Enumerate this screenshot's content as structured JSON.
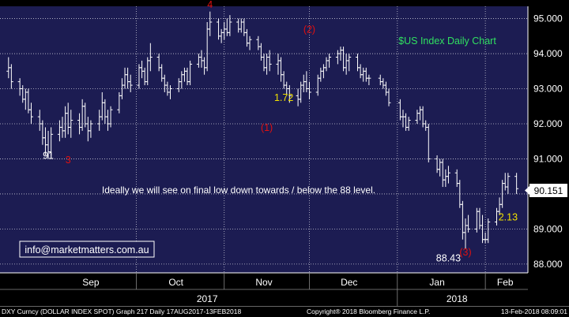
{
  "chart_data": {
    "type": "ohlc",
    "title": "$US Index Daily Chart",
    "instrument": "DXY Curncy (DOLLAR INDEX SPOT)",
    "graph_info": "Graph 217  Daily 17AUG2017-13FEB2018",
    "copyright": "Copyright® 2018 Bloomberg Finance L.P.",
    "timestamp": "13-Feb-2018 08:09:01",
    "ylim": [
      87.75,
      95.35
    ],
    "y_ticks": [
      88.0,
      89.0,
      90.0,
      91.0,
      92.0,
      93.0,
      94.0,
      95.0
    ],
    "y_tick_labels": [
      "88.000",
      "89.000",
      "90.000",
      "91.000",
      "92.000",
      "93.000",
      "94.000",
      "95.000"
    ],
    "x_labels": [
      "Sep",
      "Oct",
      "Nov",
      "Dec",
      "Jan",
      "Feb"
    ],
    "years": [
      "2017",
      "2018"
    ],
    "last_price": "90.151",
    "grid": true,
    "colors": {
      "background": "#000000",
      "plot_bg": "#1c1c52",
      "grid": "#ffffff",
      "bars": "#ffffff",
      "red": "#e01010",
      "yellow": "#f0e000",
      "green": "#30e060",
      "white": "#ffffff"
    },
    "annotations": [
      {
        "text": "91",
        "x": "2017-08-31",
        "y": 91.0,
        "color": "white"
      },
      {
        "text": "3",
        "x": "2017-09-07",
        "y": 90.88,
        "color": "red"
      },
      {
        "text": "4",
        "x": "2017-10-27",
        "y": 95.3,
        "color": "red"
      },
      {
        "text": "(1)",
        "x": "2017-11-16",
        "y": 91.8,
        "color": "red"
      },
      {
        "text": "1.72",
        "x": "2017-11-22",
        "y": 92.65,
        "color": "yellow"
      },
      {
        "text": "(2)",
        "x": "2017-12-01",
        "y": 94.6,
        "color": "red"
      },
      {
        "text": "88.43",
        "x": "2018-01-19",
        "y": 88.08,
        "color": "white"
      },
      {
        "text": "(3)",
        "x": "2018-01-25",
        "y": 88.25,
        "color": "red"
      },
      {
        "text": "2.13",
        "x": "2018-02-09",
        "y": 89.25,
        "color": "yellow"
      }
    ],
    "commentary": "Ideally we will see on final low down towards / below the 88 level.",
    "contact": "info@marketmatters.com.au",
    "bars": [
      {
        "date": "2017-08-17",
        "o": 93.5,
        "h": 93.9,
        "l": 93.3,
        "c": 93.6
      },
      {
        "date": "2017-08-18",
        "o": 93.6,
        "h": 93.7,
        "l": 93.0,
        "c": 93.2
      },
      {
        "date": "2017-08-21",
        "o": 93.2,
        "h": 93.3,
        "l": 92.8,
        "c": 93.0
      },
      {
        "date": "2017-08-22",
        "o": 93.0,
        "h": 93.1,
        "l": 92.6,
        "c": 92.7
      },
      {
        "date": "2017-08-23",
        "o": 92.7,
        "h": 93.0,
        "l": 92.4,
        "c": 92.9
      },
      {
        "date": "2017-08-24",
        "o": 92.9,
        "h": 93.0,
        "l": 92.3,
        "c": 92.4
      },
      {
        "date": "2017-08-25",
        "o": 92.4,
        "h": 92.6,
        "l": 92.0,
        "c": 92.2
      },
      {
        "date": "2017-08-28",
        "o": 92.2,
        "h": 92.4,
        "l": 91.8,
        "c": 92.0
      },
      {
        "date": "2017-08-29",
        "o": 92.0,
        "h": 92.1,
        "l": 91.4,
        "c": 91.6
      },
      {
        "date": "2017-08-30",
        "o": 91.6,
        "h": 91.9,
        "l": 91.1,
        "c": 91.4
      },
      {
        "date": "2017-08-31",
        "o": 91.4,
        "h": 91.8,
        "l": 91.0,
        "c": 91.2
      },
      {
        "date": "2017-09-01",
        "o": 91.2,
        "h": 91.9,
        "l": 91.1,
        "c": 91.7
      },
      {
        "date": "2017-09-04",
        "o": 91.7,
        "h": 92.1,
        "l": 91.5,
        "c": 91.9
      },
      {
        "date": "2017-09-05",
        "o": 91.9,
        "h": 92.2,
        "l": 91.6,
        "c": 91.8
      },
      {
        "date": "2017-09-06",
        "o": 91.8,
        "h": 92.5,
        "l": 91.6,
        "c": 92.3
      },
      {
        "date": "2017-09-07",
        "o": 92.3,
        "h": 92.6,
        "l": 91.7,
        "c": 91.9
      },
      {
        "date": "2017-09-08",
        "o": 91.9,
        "h": 92.4,
        "l": 91.6,
        "c": 92.1
      },
      {
        "date": "2017-09-11",
        "o": 92.1,
        "h": 92.3,
        "l": 91.7,
        "c": 91.9
      },
      {
        "date": "2017-09-12",
        "o": 91.9,
        "h": 92.7,
        "l": 91.8,
        "c": 92.5
      },
      {
        "date": "2017-09-13",
        "o": 92.5,
        "h": 92.6,
        "l": 91.9,
        "c": 92.0
      },
      {
        "date": "2017-09-14",
        "o": 92.0,
        "h": 92.2,
        "l": 91.5,
        "c": 91.8
      },
      {
        "date": "2017-09-15",
        "o": 91.8,
        "h": 92.1,
        "l": 91.6,
        "c": 92.0
      },
      {
        "date": "2017-09-18",
        "o": 92.0,
        "h": 92.4,
        "l": 91.8,
        "c": 92.2
      },
      {
        "date": "2017-09-19",
        "o": 92.2,
        "h": 92.9,
        "l": 92.1,
        "c": 92.6
      },
      {
        "date": "2017-09-20",
        "o": 92.6,
        "h": 92.7,
        "l": 92.0,
        "c": 92.2
      },
      {
        "date": "2017-09-21",
        "o": 92.2,
        "h": 92.4,
        "l": 91.8,
        "c": 92.0
      },
      {
        "date": "2017-09-22",
        "o": 92.0,
        "h": 92.5,
        "l": 91.9,
        "c": 92.4
      },
      {
        "date": "2017-09-25",
        "o": 92.4,
        "h": 92.9,
        "l": 92.3,
        "c": 92.8
      },
      {
        "date": "2017-09-26",
        "o": 92.8,
        "h": 93.3,
        "l": 92.7,
        "c": 93.1
      },
      {
        "date": "2017-09-27",
        "o": 93.1,
        "h": 93.6,
        "l": 93.0,
        "c": 93.4
      },
      {
        "date": "2017-09-28",
        "o": 93.4,
        "h": 93.6,
        "l": 93.0,
        "c": 93.2
      },
      {
        "date": "2017-09-29",
        "o": 93.2,
        "h": 93.4,
        "l": 92.9,
        "c": 93.1
      },
      {
        "date": "2017-10-02",
        "o": 93.1,
        "h": 93.7,
        "l": 93.0,
        "c": 93.6
      },
      {
        "date": "2017-10-03",
        "o": 93.6,
        "h": 93.8,
        "l": 93.3,
        "c": 93.5
      },
      {
        "date": "2017-10-04",
        "o": 93.5,
        "h": 93.6,
        "l": 93.1,
        "c": 93.2
      },
      {
        "date": "2017-10-05",
        "o": 93.2,
        "h": 93.9,
        "l": 93.1,
        "c": 93.8
      },
      {
        "date": "2017-10-06",
        "o": 93.8,
        "h": 94.3,
        "l": 93.5,
        "c": 93.9
      },
      {
        "date": "2017-10-09",
        "o": 93.9,
        "h": 94.0,
        "l": 93.5,
        "c": 93.6
      },
      {
        "date": "2017-10-10",
        "o": 93.6,
        "h": 93.7,
        "l": 93.2,
        "c": 93.3
      },
      {
        "date": "2017-10-11",
        "o": 93.3,
        "h": 93.4,
        "l": 92.9,
        "c": 93.1
      },
      {
        "date": "2017-10-12",
        "o": 93.1,
        "h": 93.2,
        "l": 92.8,
        "c": 92.9
      },
      {
        "date": "2017-10-13",
        "o": 92.9,
        "h": 93.1,
        "l": 92.7,
        "c": 93.0
      },
      {
        "date": "2017-10-16",
        "o": 93.0,
        "h": 93.3,
        "l": 92.9,
        "c": 93.2
      },
      {
        "date": "2017-10-17",
        "o": 93.2,
        "h": 93.5,
        "l": 93.0,
        "c": 93.4
      },
      {
        "date": "2017-10-18",
        "o": 93.4,
        "h": 93.6,
        "l": 93.2,
        "c": 93.5
      },
      {
        "date": "2017-10-19",
        "o": 93.5,
        "h": 93.6,
        "l": 93.1,
        "c": 93.2
      },
      {
        "date": "2017-10-20",
        "o": 93.2,
        "h": 93.8,
        "l": 93.1,
        "c": 93.7
      },
      {
        "date": "2017-10-23",
        "o": 93.7,
        "h": 94.0,
        "l": 93.6,
        "c": 93.9
      },
      {
        "date": "2017-10-24",
        "o": 93.9,
        "h": 94.1,
        "l": 93.6,
        "c": 93.8
      },
      {
        "date": "2017-10-25",
        "o": 93.8,
        "h": 93.9,
        "l": 93.4,
        "c": 93.6
      },
      {
        "date": "2017-10-26",
        "o": 93.6,
        "h": 94.9,
        "l": 93.5,
        "c": 94.7
      },
      {
        "date": "2017-10-27",
        "o": 94.7,
        "h": 95.2,
        "l": 94.5,
        "c": 94.9
      },
      {
        "date": "2017-10-30",
        "o": 94.9,
        "h": 95.0,
        "l": 94.4,
        "c": 94.5
      },
      {
        "date": "2017-10-31",
        "o": 94.5,
        "h": 94.7,
        "l": 94.3,
        "c": 94.6
      },
      {
        "date": "2017-11-01",
        "o": 94.6,
        "h": 94.9,
        "l": 94.4,
        "c": 94.7
      },
      {
        "date": "2017-11-02",
        "o": 94.7,
        "h": 95.0,
        "l": 94.5,
        "c": 94.6
      },
      {
        "date": "2017-11-03",
        "o": 94.6,
        "h": 95.1,
        "l": 94.5,
        "c": 94.9
      },
      {
        "date": "2017-11-06",
        "o": 94.9,
        "h": 95.0,
        "l": 94.6,
        "c": 94.7
      },
      {
        "date": "2017-11-07",
        "o": 94.7,
        "h": 95.0,
        "l": 94.6,
        "c": 94.9
      },
      {
        "date": "2017-11-08",
        "o": 94.9,
        "h": 95.0,
        "l": 94.5,
        "c": 94.6
      },
      {
        "date": "2017-11-09",
        "o": 94.6,
        "h": 94.7,
        "l": 94.2,
        "c": 94.3
      },
      {
        "date": "2017-11-10",
        "o": 94.3,
        "h": 94.5,
        "l": 94.1,
        "c": 94.4
      },
      {
        "date": "2017-11-13",
        "o": 94.4,
        "h": 94.5,
        "l": 94.1,
        "c": 94.2
      },
      {
        "date": "2017-11-14",
        "o": 94.2,
        "h": 94.3,
        "l": 93.8,
        "c": 93.9
      },
      {
        "date": "2017-11-15",
        "o": 93.9,
        "h": 94.0,
        "l": 93.5,
        "c": 93.6
      },
      {
        "date": "2017-11-16",
        "o": 93.6,
        "h": 94.0,
        "l": 93.4,
        "c": 93.9
      },
      {
        "date": "2017-11-17",
        "o": 93.9,
        "h": 94.1,
        "l": 93.5,
        "c": 93.7
      },
      {
        "date": "2017-11-20",
        "o": 93.7,
        "h": 94.0,
        "l": 93.4,
        "c": 93.8
      },
      {
        "date": "2017-11-21",
        "o": 93.8,
        "h": 93.9,
        "l": 93.2,
        "c": 93.4
      },
      {
        "date": "2017-11-22",
        "o": 93.4,
        "h": 93.5,
        "l": 93.0,
        "c": 93.1
      },
      {
        "date": "2017-11-23",
        "o": 93.1,
        "h": 93.2,
        "l": 92.8,
        "c": 93.0
      },
      {
        "date": "2017-11-24",
        "o": 93.0,
        "h": 93.1,
        "l": 92.6,
        "c": 92.8
      },
      {
        "date": "2017-11-27",
        "o": 92.8,
        "h": 93.0,
        "l": 92.5,
        "c": 92.7
      },
      {
        "date": "2017-11-28",
        "o": 92.7,
        "h": 93.2,
        "l": 92.6,
        "c": 93.1
      },
      {
        "date": "2017-11-29",
        "o": 93.1,
        "h": 93.4,
        "l": 92.9,
        "c": 93.2
      },
      {
        "date": "2017-11-30",
        "o": 93.2,
        "h": 93.5,
        "l": 92.9,
        "c": 93.0
      },
      {
        "date": "2017-12-01",
        "o": 93.0,
        "h": 93.2,
        "l": 92.7,
        "c": 92.9
      },
      {
        "date": "2017-12-04",
        "o": 92.9,
        "h": 93.4,
        "l": 92.8,
        "c": 93.3
      },
      {
        "date": "2017-12-05",
        "o": 93.3,
        "h": 93.6,
        "l": 93.2,
        "c": 93.5
      },
      {
        "date": "2017-12-06",
        "o": 93.5,
        "h": 93.7,
        "l": 93.3,
        "c": 93.6
      },
      {
        "date": "2017-12-07",
        "o": 93.6,
        "h": 93.9,
        "l": 93.5,
        "c": 93.8
      },
      {
        "date": "2017-12-08",
        "o": 93.8,
        "h": 94.0,
        "l": 93.6,
        "c": 93.9
      },
      {
        "date": "2017-12-11",
        "o": 93.9,
        "h": 94.1,
        "l": 93.7,
        "c": 94.0
      },
      {
        "date": "2017-12-12",
        "o": 94.0,
        "h": 94.2,
        "l": 93.8,
        "c": 94.1
      },
      {
        "date": "2017-12-13",
        "o": 94.1,
        "h": 94.2,
        "l": 93.5,
        "c": 93.6
      },
      {
        "date": "2017-12-14",
        "o": 93.6,
        "h": 94.0,
        "l": 93.4,
        "c": 93.8
      },
      {
        "date": "2017-12-15",
        "o": 93.8,
        "h": 94.0,
        "l": 93.5,
        "c": 93.9
      },
      {
        "date": "2017-12-18",
        "o": 93.9,
        "h": 94.0,
        "l": 93.5,
        "c": 93.6
      },
      {
        "date": "2017-12-19",
        "o": 93.6,
        "h": 93.7,
        "l": 93.3,
        "c": 93.4
      },
      {
        "date": "2017-12-20",
        "o": 93.4,
        "h": 93.6,
        "l": 93.2,
        "c": 93.5
      },
      {
        "date": "2017-12-21",
        "o": 93.5,
        "h": 93.6,
        "l": 93.2,
        "c": 93.3
      },
      {
        "date": "2017-12-22",
        "o": 93.3,
        "h": 93.4,
        "l": 93.1,
        "c": 93.3
      },
      {
        "date": "2017-12-26",
        "o": 93.3,
        "h": 93.4,
        "l": 93.1,
        "c": 93.2
      },
      {
        "date": "2017-12-27",
        "o": 93.2,
        "h": 93.3,
        "l": 93.0,
        "c": 93.1
      },
      {
        "date": "2017-12-28",
        "o": 93.1,
        "h": 93.2,
        "l": 92.8,
        "c": 92.9
      },
      {
        "date": "2017-12-29",
        "o": 92.9,
        "h": 93.0,
        "l": 92.5,
        "c": 92.6
      },
      {
        "date": "2018-01-02",
        "o": 92.6,
        "h": 92.7,
        "l": 92.1,
        "c": 92.2
      },
      {
        "date": "2018-01-03",
        "o": 92.2,
        "h": 92.4,
        "l": 91.9,
        "c": 92.2
      },
      {
        "date": "2018-01-04",
        "o": 92.2,
        "h": 92.3,
        "l": 91.8,
        "c": 91.9
      },
      {
        "date": "2018-01-05",
        "o": 91.9,
        "h": 92.2,
        "l": 91.8,
        "c": 92.1
      },
      {
        "date": "2018-01-08",
        "o": 92.1,
        "h": 92.4,
        "l": 92.0,
        "c": 92.3
      },
      {
        "date": "2018-01-09",
        "o": 92.3,
        "h": 92.5,
        "l": 92.1,
        "c": 92.4
      },
      {
        "date": "2018-01-10",
        "o": 92.4,
        "h": 92.5,
        "l": 91.9,
        "c": 92.0
      },
      {
        "date": "2018-01-11",
        "o": 92.0,
        "h": 92.1,
        "l": 91.8,
        "c": 91.9
      },
      {
        "date": "2018-01-12",
        "o": 91.9,
        "h": 92.0,
        "l": 90.9,
        "c": 91.0
      },
      {
        "date": "2018-01-15",
        "o": 91.0,
        "h": 91.1,
        "l": 90.6,
        "c": 90.7
      },
      {
        "date": "2018-01-16",
        "o": 90.7,
        "h": 91.0,
        "l": 90.5,
        "c": 90.9
      },
      {
        "date": "2018-01-17",
        "o": 90.9,
        "h": 91.0,
        "l": 90.2,
        "c": 90.4
      },
      {
        "date": "2018-01-18",
        "o": 90.4,
        "h": 90.7,
        "l": 90.2,
        "c": 90.5
      },
      {
        "date": "2018-01-19",
        "o": 90.5,
        "h": 90.8,
        "l": 90.3,
        "c": 90.6
      },
      {
        "date": "2018-01-22",
        "o": 90.6,
        "h": 90.7,
        "l": 90.2,
        "c": 90.3
      },
      {
        "date": "2018-01-23",
        "o": 90.3,
        "h": 90.4,
        "l": 89.6,
        "c": 89.7
      },
      {
        "date": "2018-01-24",
        "o": 89.7,
        "h": 89.8,
        "l": 88.7,
        "c": 88.9
      },
      {
        "date": "2018-01-25",
        "o": 88.9,
        "h": 89.3,
        "l": 88.43,
        "c": 89.1
      },
      {
        "date": "2018-01-26",
        "o": 89.1,
        "h": 89.4,
        "l": 88.9,
        "c": 89.0
      },
      {
        "date": "2018-01-29",
        "o": 89.0,
        "h": 89.6,
        "l": 88.9,
        "c": 89.5
      },
      {
        "date": "2018-01-30",
        "o": 89.5,
        "h": 89.6,
        "l": 89.0,
        "c": 89.1
      },
      {
        "date": "2018-01-31",
        "o": 89.1,
        "h": 89.4,
        "l": 88.6,
        "c": 88.7
      },
      {
        "date": "2018-02-01",
        "o": 88.7,
        "h": 88.9,
        "l": 88.6,
        "c": 88.7
      },
      {
        "date": "2018-02-02",
        "o": 88.7,
        "h": 89.3,
        "l": 88.6,
        "c": 89.2
      },
      {
        "date": "2018-02-05",
        "o": 89.2,
        "h": 89.6,
        "l": 89.1,
        "c": 89.5
      },
      {
        "date": "2018-02-06",
        "o": 89.5,
        "h": 89.9,
        "l": 89.4,
        "c": 89.7
      },
      {
        "date": "2018-02-07",
        "o": 89.7,
        "h": 90.4,
        "l": 89.6,
        "c": 90.3
      },
      {
        "date": "2018-02-08",
        "o": 90.3,
        "h": 90.6,
        "l": 90.1,
        "c": 90.2
      },
      {
        "date": "2018-02-09",
        "o": 90.2,
        "h": 90.6,
        "l": 90.0,
        "c": 90.5
      },
      {
        "date": "2018-02-12",
        "o": 90.5,
        "h": 90.6,
        "l": 90.0,
        "c": 90.15
      }
    ]
  }
}
